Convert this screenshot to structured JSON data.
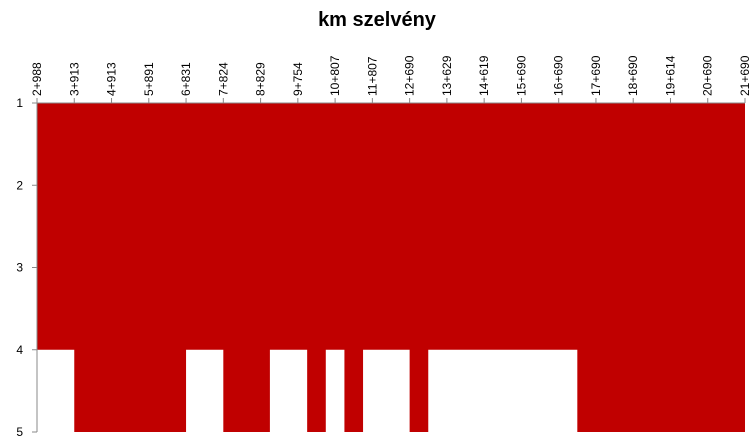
{
  "chart_data": {
    "type": "area",
    "title": "km szelvény",
    "categories": [
      "2+988",
      null,
      null,
      null,
      "3+913",
      null,
      null,
      null,
      "4+913",
      null,
      null,
      null,
      "5+891",
      null,
      null,
      null,
      "6+831",
      null,
      null,
      null,
      "7+824",
      null,
      null,
      null,
      "8+829",
      null,
      null,
      null,
      "9+754",
      null,
      null,
      null,
      "10+807",
      null,
      null,
      null,
      "11+807",
      null,
      null,
      null,
      "12+690",
      null,
      null,
      null,
      "13+629",
      null,
      null,
      null,
      "14+619",
      null,
      null,
      null,
      "15+690",
      null,
      null,
      null,
      "16+690",
      null,
      null,
      null,
      "17+690",
      null,
      null,
      null,
      "18+690",
      null,
      null,
      null,
      "19+614",
      null,
      null,
      null,
      "20+690",
      null,
      null,
      null,
      "21+690"
    ],
    "values": [
      4,
      4,
      4,
      4,
      5,
      5,
      5,
      5,
      5,
      5,
      5,
      5,
      5,
      5,
      5,
      5,
      4,
      4,
      4,
      4,
      5,
      5,
      5,
      5,
      5,
      4,
      4,
      4,
      4,
      5,
      5,
      4,
      4,
      5,
      5,
      4,
      4,
      4,
      4,
      4,
      5,
      5,
      4,
      4,
      4,
      4,
      4,
      4,
      4,
      4,
      4,
      4,
      4,
      4,
      4,
      4,
      4,
      4,
      5,
      5,
      5,
      5,
      5,
      5,
      5,
      5,
      5,
      5,
      5,
      5,
      5,
      5,
      5,
      5,
      5,
      5,
      5
    ],
    "color": "#c00000",
    "ylim": [
      1,
      5
    ],
    "yticks": [
      1,
      2,
      3,
      4,
      5
    ],
    "y_inverted": true,
    "x_axis_position": "top"
  }
}
